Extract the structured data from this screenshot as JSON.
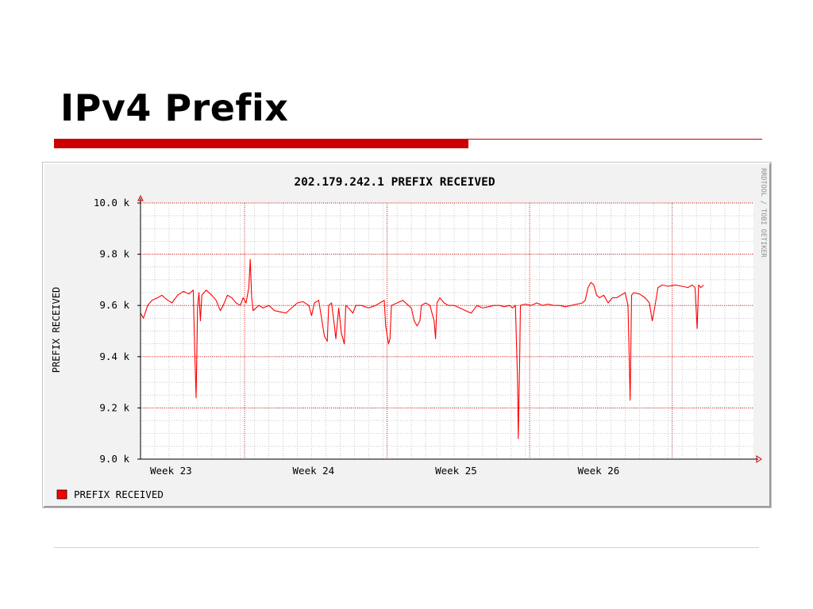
{
  "slide": {
    "title": "IPv4 Prefix"
  },
  "colors": {
    "title_rule": "#cc0000",
    "thin_rule": "#cc0000",
    "footer_rule": "#f0c8b8",
    "chart_background": "#f2f2f2",
    "plot_background": "#ffffff",
    "grid_minor": "#b0b0b0",
    "grid_major": "#cc0000",
    "series": "#ff0000",
    "text": "#000000",
    "watermark": "#909090"
  },
  "chart_data": {
    "type": "line",
    "title": "202.179.242.1 PREFIX RECEIVED",
    "ylabel": "PREFIX RECEIVED",
    "xlabel": "",
    "watermark": "RRDTOOL / TOBI OETIKER",
    "ylim": [
      9000,
      10000
    ],
    "xlim": [
      0,
      4.3
    ],
    "x_unit": "weeks from start of Week 23",
    "y_ticks": [
      {
        "value": 9000,
        "label": "9.0 k"
      },
      {
        "value": 9200,
        "label": "9.2 k"
      },
      {
        "value": 9400,
        "label": "9.4 k"
      },
      {
        "value": 9600,
        "label": "9.6 k"
      },
      {
        "value": 9800,
        "label": "9.8 k"
      },
      {
        "value": 10000,
        "label": "10.0 k"
      }
    ],
    "x_week_labels": [
      {
        "x": 0.0,
        "label": "Week 23"
      },
      {
        "x": 1.0,
        "label": "Week 24"
      },
      {
        "x": 2.0,
        "label": "Week 25"
      },
      {
        "x": 3.0,
        "label": "Week 26"
      }
    ],
    "x_major_grid": [
      0.73,
      1.73,
      2.73,
      3.73
    ],
    "x_minor_step": 0.1,
    "y_minor_step": 50,
    "grid": true,
    "legend_position": "bottom-left",
    "series": [
      {
        "name": "PREFIX RECEIVED",
        "color": "#ff0000",
        "points": [
          [
            0.0,
            9570
          ],
          [
            0.02,
            9550
          ],
          [
            0.05,
            9600
          ],
          [
            0.08,
            9620
          ],
          [
            0.12,
            9630
          ],
          [
            0.15,
            9640
          ],
          [
            0.18,
            9625
          ],
          [
            0.22,
            9610
          ],
          [
            0.26,
            9640
          ],
          [
            0.3,
            9655
          ],
          [
            0.34,
            9645
          ],
          [
            0.37,
            9660
          ],
          [
            0.38,
            9430
          ],
          [
            0.39,
            9240
          ],
          [
            0.4,
            9590
          ],
          [
            0.41,
            9650
          ],
          [
            0.42,
            9540
          ],
          [
            0.43,
            9640
          ],
          [
            0.46,
            9660
          ],
          [
            0.5,
            9640
          ],
          [
            0.53,
            9620
          ],
          [
            0.56,
            9580
          ],
          [
            0.58,
            9600
          ],
          [
            0.61,
            9640
          ],
          [
            0.64,
            9630
          ],
          [
            0.67,
            9610
          ],
          [
            0.7,
            9600
          ],
          [
            0.72,
            9630
          ],
          [
            0.74,
            9610
          ],
          [
            0.76,
            9670
          ],
          [
            0.77,
            9780
          ],
          [
            0.78,
            9630
          ],
          [
            0.79,
            9580
          ],
          [
            0.83,
            9600
          ],
          [
            0.86,
            9590
          ],
          [
            0.9,
            9600
          ],
          [
            0.94,
            9580
          ],
          [
            0.98,
            9575
          ],
          [
            1.02,
            9570
          ],
          [
            1.06,
            9590
          ],
          [
            1.1,
            9610
          ],
          [
            1.14,
            9615
          ],
          [
            1.18,
            9600
          ],
          [
            1.2,
            9560
          ],
          [
            1.22,
            9610
          ],
          [
            1.25,
            9620
          ],
          [
            1.27,
            9550
          ],
          [
            1.29,
            9480
          ],
          [
            1.31,
            9460
          ],
          [
            1.32,
            9600
          ],
          [
            1.34,
            9610
          ],
          [
            1.36,
            9520
          ],
          [
            1.37,
            9470
          ],
          [
            1.39,
            9590
          ],
          [
            1.41,
            9490
          ],
          [
            1.43,
            9450
          ],
          [
            1.44,
            9600
          ],
          [
            1.46,
            9590
          ],
          [
            1.49,
            9570
          ],
          [
            1.51,
            9600
          ],
          [
            1.55,
            9600
          ],
          [
            1.6,
            9590
          ],
          [
            1.65,
            9600
          ],
          [
            1.68,
            9610
          ],
          [
            1.71,
            9620
          ],
          [
            1.72,
            9520
          ],
          [
            1.74,
            9450
          ],
          [
            1.75,
            9470
          ],
          [
            1.76,
            9600
          ],
          [
            1.8,
            9610
          ],
          [
            1.84,
            9620
          ],
          [
            1.88,
            9600
          ],
          [
            1.9,
            9590
          ],
          [
            1.92,
            9540
          ],
          [
            1.94,
            9520
          ],
          [
            1.96,
            9540
          ],
          [
            1.97,
            9600
          ],
          [
            2.0,
            9610
          ],
          [
            2.03,
            9600
          ],
          [
            2.06,
            9540
          ],
          [
            2.07,
            9470
          ],
          [
            2.08,
            9610
          ],
          [
            2.1,
            9630
          ],
          [
            2.13,
            9610
          ],
          [
            2.16,
            9600
          ],
          [
            2.2,
            9600
          ],
          [
            2.24,
            9590
          ],
          [
            2.28,
            9580
          ],
          [
            2.32,
            9570
          ],
          [
            2.36,
            9600
          ],
          [
            2.4,
            9590
          ],
          [
            2.44,
            9595
          ],
          [
            2.48,
            9600
          ],
          [
            2.52,
            9600
          ],
          [
            2.55,
            9595
          ],
          [
            2.59,
            9600
          ],
          [
            2.61,
            9590
          ],
          [
            2.63,
            9600
          ],
          [
            2.645,
            9300
          ],
          [
            2.65,
            9080
          ],
          [
            2.66,
            9400
          ],
          [
            2.665,
            9600
          ],
          [
            2.7,
            9605
          ],
          [
            2.74,
            9600
          ],
          [
            2.78,
            9610
          ],
          [
            2.82,
            9600
          ],
          [
            2.86,
            9605
          ],
          [
            2.9,
            9600
          ],
          [
            2.94,
            9600
          ],
          [
            2.98,
            9595
          ],
          [
            3.02,
            9600
          ],
          [
            3.06,
            9605
          ],
          [
            3.1,
            9610
          ],
          [
            3.12,
            9620
          ],
          [
            3.14,
            9670
          ],
          [
            3.16,
            9690
          ],
          [
            3.18,
            9680
          ],
          [
            3.2,
            9640
          ],
          [
            3.22,
            9630
          ],
          [
            3.25,
            9640
          ],
          [
            3.28,
            9610
          ],
          [
            3.31,
            9630
          ],
          [
            3.34,
            9630
          ],
          [
            3.37,
            9640
          ],
          [
            3.4,
            9650
          ],
          [
            3.42,
            9600
          ],
          [
            3.435,
            9230
          ],
          [
            3.445,
            9640
          ],
          [
            3.46,
            9650
          ],
          [
            3.5,
            9645
          ],
          [
            3.54,
            9630
          ],
          [
            3.57,
            9610
          ],
          [
            3.59,
            9540
          ],
          [
            3.61,
            9600
          ],
          [
            3.63,
            9670
          ],
          [
            3.66,
            9680
          ],
          [
            3.7,
            9675
          ],
          [
            3.75,
            9680
          ],
          [
            3.8,
            9675
          ],
          [
            3.84,
            9670
          ],
          [
            3.87,
            9680
          ],
          [
            3.89,
            9670
          ],
          [
            3.905,
            9510
          ],
          [
            3.915,
            9680
          ],
          [
            3.93,
            9670
          ],
          [
            3.95,
            9680
          ]
        ]
      }
    ]
  }
}
